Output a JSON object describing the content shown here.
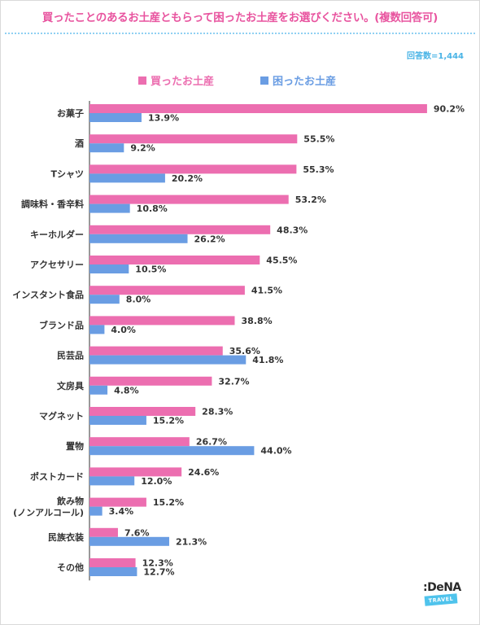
{
  "header": {
    "title": "買ったことのあるお土産ともらって困ったお土産をお選びください。(複数回答可)",
    "respondents": "回答数=1,444"
  },
  "colors": {
    "bought": "#ec6eb0",
    "troubled": "#6a9de3",
    "title": "#e8549f",
    "note": "#4ab4e6"
  },
  "logo": {
    "text": ":DeNA",
    "badge": "TRAVEL"
  },
  "chart_data": {
    "type": "bar",
    "orientation": "horizontal",
    "xlim": [
      0,
      100
    ],
    "grid": false,
    "legend_position": "top",
    "categories": [
      "お菓子",
      "酒",
      "Tシャツ",
      "調味料・香辛料",
      "キーホルダー",
      "アクセサリー",
      "インスタント食品",
      "ブランド品",
      "民芸品",
      "文房具",
      "マグネット",
      "置物",
      "ポストカード",
      "飲み物\n(ノンアルコール)",
      "民族衣装",
      "その他"
    ],
    "series": [
      {
        "name": "買ったお土産",
        "values": [
          90.2,
          55.5,
          55.3,
          53.2,
          48.3,
          45.5,
          41.5,
          38.8,
          35.6,
          32.7,
          28.3,
          26.7,
          24.6,
          15.2,
          7.6,
          12.3
        ]
      },
      {
        "name": "困ったお土産",
        "values": [
          13.9,
          9.2,
          20.2,
          10.8,
          26.2,
          10.5,
          8.0,
          4.0,
          41.8,
          4.8,
          15.2,
          44.0,
          12.0,
          3.4,
          21.3,
          12.7
        ]
      }
    ]
  }
}
